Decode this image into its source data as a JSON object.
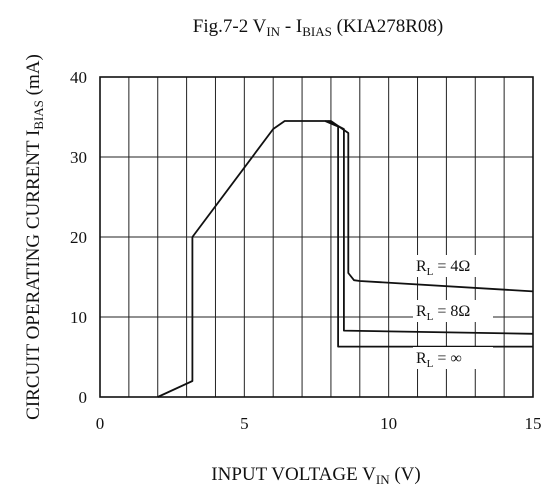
{
  "chart_data": {
    "type": "line",
    "title": {
      "prefix": "Fig.7-2  V",
      "prefix_sub": "IN",
      "mid": " - I",
      "mid_sub": "BIAS",
      "suffix": " (KIA278R08)"
    },
    "xlabel": {
      "main": "INPUT VOLTAGE V",
      "sub": "IN",
      "unit": " (V)"
    },
    "ylabel": {
      "main": "CIRCUIT OPERATING CURRENT I",
      "sub": "BIAS",
      "unit": " (mA)"
    },
    "xlim": [
      0,
      15
    ],
    "ylim": [
      0,
      40
    ],
    "xticks": [
      0,
      5,
      10,
      15
    ],
    "yticks": [
      0,
      10,
      20,
      30,
      40
    ],
    "x_grid_step": 1,
    "y_grid_step": 10,
    "grid": true,
    "series": [
      {
        "label_main": "R",
        "label_sub": "L",
        "label_value": " = 4Ω",
        "points": [
          [
            2,
            0
          ],
          [
            3.2,
            2
          ],
          [
            3.2,
            20
          ],
          [
            6.0,
            33.5
          ],
          [
            6.4,
            34.5
          ],
          [
            7.2,
            34.5
          ],
          [
            8.0,
            34.5
          ],
          [
            8.6,
            33
          ],
          [
            8.6,
            15.5
          ],
          [
            8.8,
            14.6
          ],
          [
            9.0,
            14.5
          ],
          [
            15,
            13.2
          ]
        ]
      },
      {
        "label_main": "R",
        "label_sub": "L",
        "label_value": " = 8Ω",
        "points": [
          [
            7.9,
            34.5
          ],
          [
            8.45,
            33.5
          ],
          [
            8.45,
            8.3
          ],
          [
            15,
            7.9
          ]
        ]
      },
      {
        "label_main": "R",
        "label_sub": "L",
        "label_value": " = ∞",
        "points": [
          [
            7.8,
            34.5
          ],
          [
            8.25,
            33.8
          ],
          [
            8.25,
            6.3
          ],
          [
            15,
            6.3
          ]
        ]
      }
    ]
  }
}
